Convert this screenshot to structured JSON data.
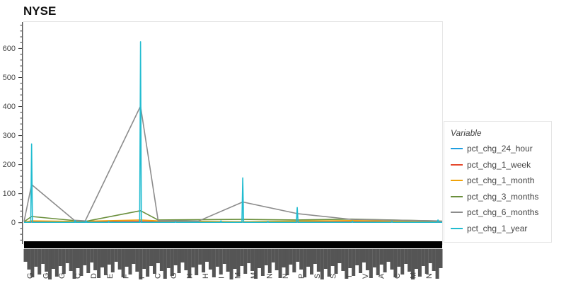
{
  "chart_data": {
    "type": "line",
    "title": "NYSE",
    "xlabel": "",
    "ylabel": "",
    "ylim": [
      -75,
      690
    ],
    "yticks": [
      0,
      100,
      200,
      300,
      400,
      500,
      600
    ],
    "legend_title": "Variable",
    "legend_position": "right",
    "grid": false,
    "x_count": 500,
    "visible_x_labels": [
      "G",
      "G",
      "G",
      "C",
      "D",
      "E",
      "F",
      "F",
      "C",
      "G",
      "H",
      "H",
      "I",
      "M",
      "M",
      "N",
      "N",
      "P",
      "S",
      "S",
      "T",
      "V",
      "A",
      "C",
      "M",
      "N"
    ],
    "series": [
      {
        "name": "pct_chg_24_hour",
        "color": "#1f9ee0",
        "points": [
          [
            0,
            0.3
          ],
          [
            9,
            0.6
          ],
          [
            77,
            0.4
          ],
          [
            139,
            0.5
          ],
          [
            160,
            0.8
          ],
          [
            208,
            0.4
          ],
          [
            261,
            0.6
          ],
          [
            326,
            0.5
          ],
          [
            439,
            0.7
          ],
          [
            499,
            0.4
          ]
        ]
      },
      {
        "name": "pct_chg_1_week",
        "color": "#e5492d",
        "points": [
          [
            0,
            0.5
          ],
          [
            9,
            2
          ],
          [
            45,
            1.5
          ],
          [
            139,
            3
          ],
          [
            163,
            2
          ],
          [
            234,
            1.5
          ],
          [
            284,
            2
          ],
          [
            311,
            1.5
          ],
          [
            391,
            2
          ],
          [
            499,
            1
          ]
        ]
      },
      {
        "name": "pct_chg_1_month",
        "color": "#f0a30a",
        "points": [
          [
            0,
            1
          ],
          [
            9,
            5
          ],
          [
            60,
            3
          ],
          [
            139,
            8
          ],
          [
            160,
            5
          ],
          [
            221,
            3
          ],
          [
            261,
            2
          ],
          [
            326,
            4
          ],
          [
            391,
            6
          ],
          [
            499,
            2
          ]
        ]
      },
      {
        "name": "pct_chg_3_months",
        "color": "#6a8f3c",
        "points": [
          [
            0,
            2
          ],
          [
            9,
            20
          ],
          [
            60,
            6
          ],
          [
            73,
            3
          ],
          [
            139,
            40
          ],
          [
            160,
            8
          ],
          [
            261,
            10
          ],
          [
            326,
            8
          ],
          [
            391,
            11
          ],
          [
            499,
            4
          ]
        ]
      },
      {
        "name": "pct_chg_6_months",
        "color": "#8c8c8c",
        "points": [
          [
            0,
            3
          ],
          [
            9,
            130
          ],
          [
            60,
            7
          ],
          [
            73,
            5
          ],
          [
            139,
            400
          ],
          [
            160,
            6
          ],
          [
            208,
            4
          ],
          [
            261,
            70
          ],
          [
            326,
            30
          ],
          [
            391,
            10
          ],
          [
            493,
            5
          ],
          [
            499,
            3
          ]
        ]
      },
      {
        "name": "pct_chg_1_year",
        "color": "#21bcd0",
        "points": [
          [
            0,
            0
          ],
          [
            8,
            0
          ],
          [
            9,
            270
          ],
          [
            10,
            0
          ],
          [
            60,
            0
          ],
          [
            61,
            6
          ],
          [
            62,
            0
          ],
          [
            73,
            0
          ],
          [
            74,
            5
          ],
          [
            75,
            0
          ],
          [
            100,
            0
          ],
          [
            101,
            3
          ],
          [
            102,
            0
          ],
          [
            138,
            0
          ],
          [
            139,
            622
          ],
          [
            140,
            0
          ],
          [
            180,
            0
          ],
          [
            181,
            2
          ],
          [
            182,
            0
          ],
          [
            234,
            0
          ],
          [
            235,
            5
          ],
          [
            236,
            0
          ],
          [
            260,
            0
          ],
          [
            261,
            153
          ],
          [
            262,
            0
          ],
          [
            290,
            0
          ],
          [
            291,
            3
          ],
          [
            292,
            0
          ],
          [
            325,
            0
          ],
          [
            326,
            51
          ],
          [
            327,
            0
          ],
          [
            391,
            0
          ],
          [
            392,
            4
          ],
          [
            393,
            0
          ],
          [
            438,
            0
          ],
          [
            439,
            3
          ],
          [
            440,
            0
          ],
          [
            493,
            0
          ],
          [
            494,
            8
          ],
          [
            495,
            0
          ],
          [
            499,
            0
          ]
        ]
      }
    ]
  }
}
